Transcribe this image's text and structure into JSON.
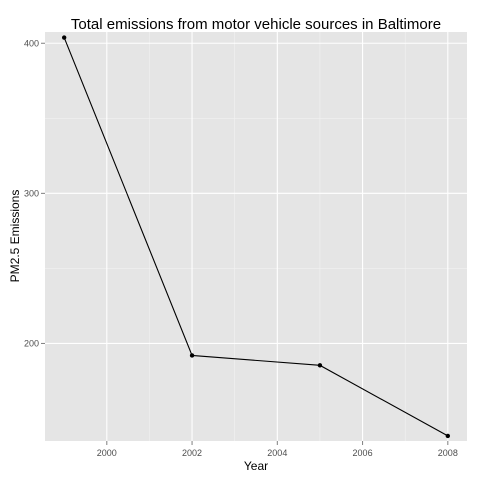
{
  "chart_data": {
    "type": "line",
    "title": "Total emissions from motor vehicle sources in Baltimore",
    "xlabel": "Year",
    "ylabel": "PM2.5 Emissions",
    "x": [
      1999,
      2002,
      2005,
      2008
    ],
    "y": [
      403.8,
      192.0,
      185.4,
      138.4
    ],
    "xlim": [
      1998.55,
      2008.45
    ],
    "ylim": [
      135.0,
      407.5
    ],
    "x_ticks": [
      "2000",
      "2002",
      "2004",
      "2006",
      "2008"
    ],
    "y_ticks": [
      "200",
      "300",
      "400"
    ],
    "grid": true,
    "legend": "none",
    "colors": {
      "panel_background": "#e5e5e5",
      "major_grid": "#ffffff",
      "minor_grid": "#f2f2f2",
      "line": "#000000",
      "point": "#000000",
      "tick_text": "#4d4d4d"
    }
  }
}
